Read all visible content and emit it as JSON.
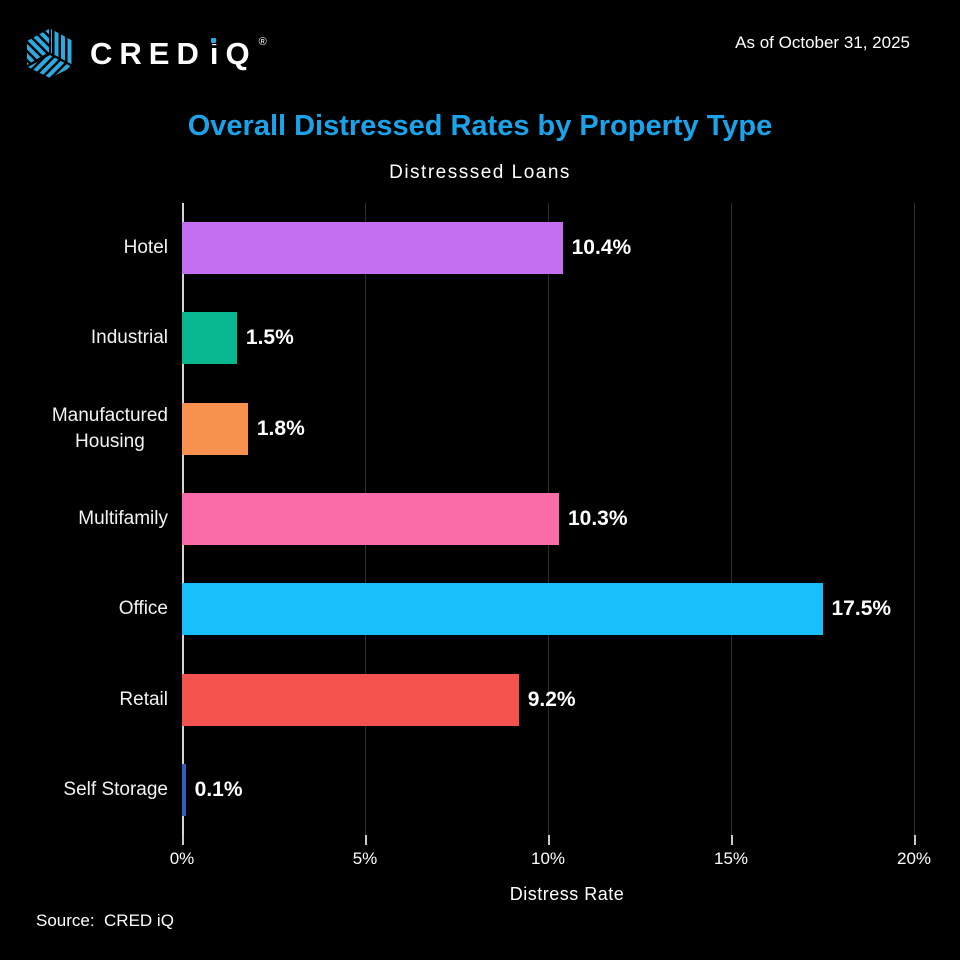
{
  "header": {
    "brand_cred": "CRED",
    "brand_iq": "iQ",
    "registered": "®",
    "as_of": "As of October 31, 2025"
  },
  "title": "Overall Distressed Rates by Property Type",
  "subtitle": "Distresssed Loans",
  "chart_data": {
    "type": "bar",
    "orientation": "horizontal",
    "title": "Distresssed Loans",
    "categories": [
      "Hotel",
      "Industrial",
      "Manufactured\nHousing",
      "Multifamily",
      "Office",
      "Retail",
      "Self Storage"
    ],
    "values": [
      10.4,
      1.5,
      1.8,
      10.3,
      17.5,
      9.2,
      0.1
    ],
    "value_labels": [
      "10.4%",
      "1.5%",
      "1.8%",
      "10.3%",
      "17.5%",
      "9.2%",
      "0.1%"
    ],
    "bar_colors": [
      "#c46ef2",
      "#08b78e",
      "#f9914e",
      "#f96ca7",
      "#18bffb",
      "#f4534e",
      "#2e5fbe"
    ],
    "xlabel": "Distress Rate",
    "x_ticks": [
      "0%",
      "5%",
      "10%",
      "15%",
      "20%"
    ],
    "x_tick_values": [
      0,
      5,
      10,
      15,
      20
    ],
    "xlim": [
      0,
      20
    ],
    "grid": true,
    "background": "#000000",
    "title_color": "#1aa3e8",
    "logo_blue": "#29abe2"
  },
  "footer": {
    "source": "Source:  CRED iQ"
  }
}
